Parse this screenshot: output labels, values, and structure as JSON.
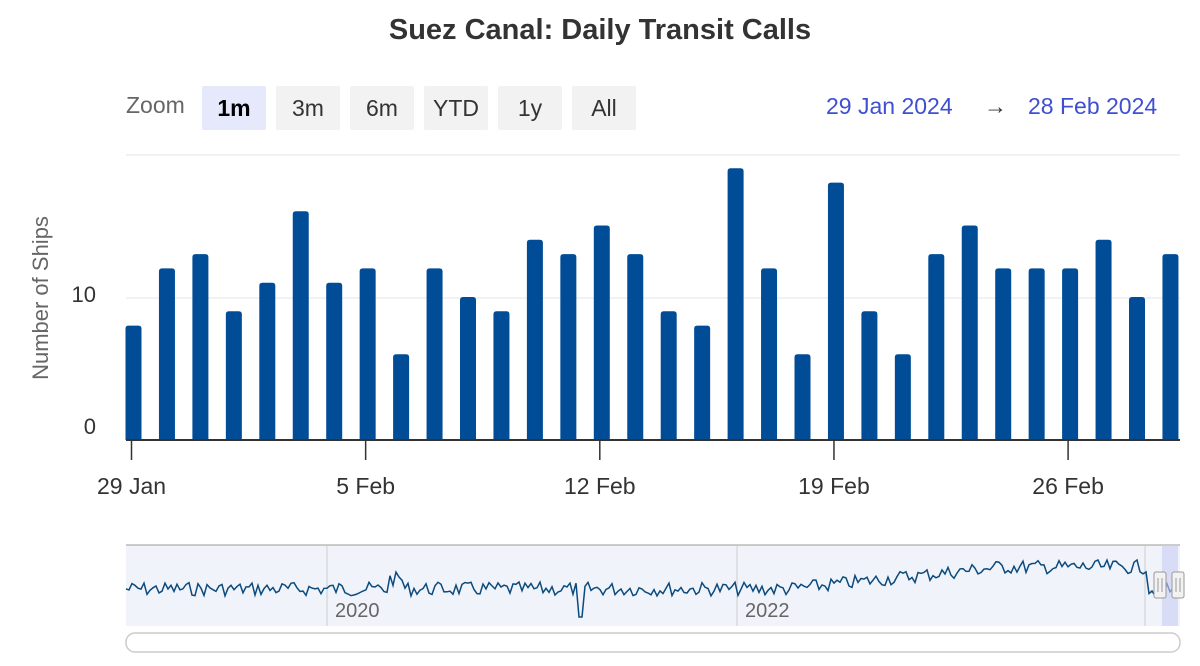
{
  "title": "Suez Canal: Daily Transit Calls",
  "range_selector": {
    "zoom_label": "Zoom",
    "buttons": [
      "1m",
      "3m",
      "6m",
      "YTD",
      "1y",
      "All"
    ],
    "active": "1m",
    "from": "29 Jan 2024",
    "arrow": "→",
    "to": "28 Feb 2024"
  },
  "colors": {
    "bar": "#004c97",
    "navigator_line": "#0b4a7d",
    "navigator_fill": "#f0f3fa",
    "selection": "#c9cdf5"
  },
  "chart_data": {
    "type": "bar",
    "title": "Suez Canal: Daily Transit Calls",
    "ylabel": "Number of Ships",
    "xlabel": "",
    "ylim": [
      0,
      20
    ],
    "y_ticks": [
      0,
      10
    ],
    "x_ticks": [
      "29 Jan",
      "5 Feb",
      "12 Feb",
      "19 Feb",
      "26 Feb"
    ],
    "categories": [
      "2024-01-29",
      "2024-01-30",
      "2024-01-31",
      "2024-02-01",
      "2024-02-02",
      "2024-02-03",
      "2024-02-04",
      "2024-02-05",
      "2024-02-06",
      "2024-02-07",
      "2024-02-08",
      "2024-02-09",
      "2024-02-10",
      "2024-02-11",
      "2024-02-12",
      "2024-02-13",
      "2024-02-14",
      "2024-02-15",
      "2024-02-16",
      "2024-02-17",
      "2024-02-18",
      "2024-02-19",
      "2024-02-20",
      "2024-02-21",
      "2024-02-22",
      "2024-02-23",
      "2024-02-24",
      "2024-02-25",
      "2024-02-26",
      "2024-02-27",
      "2024-02-28",
      "2024-02-29"
    ],
    "values": [
      8,
      12,
      13,
      9,
      11,
      16,
      11,
      12,
      6,
      12,
      10,
      9,
      14,
      13,
      15,
      13,
      9,
      8,
      19,
      12,
      6,
      18,
      9,
      6,
      13,
      15,
      12,
      12,
      12,
      14,
      10,
      13
    ],
    "grid": true,
    "navigator": {
      "labels": [
        "2020",
        "2022"
      ]
    }
  }
}
